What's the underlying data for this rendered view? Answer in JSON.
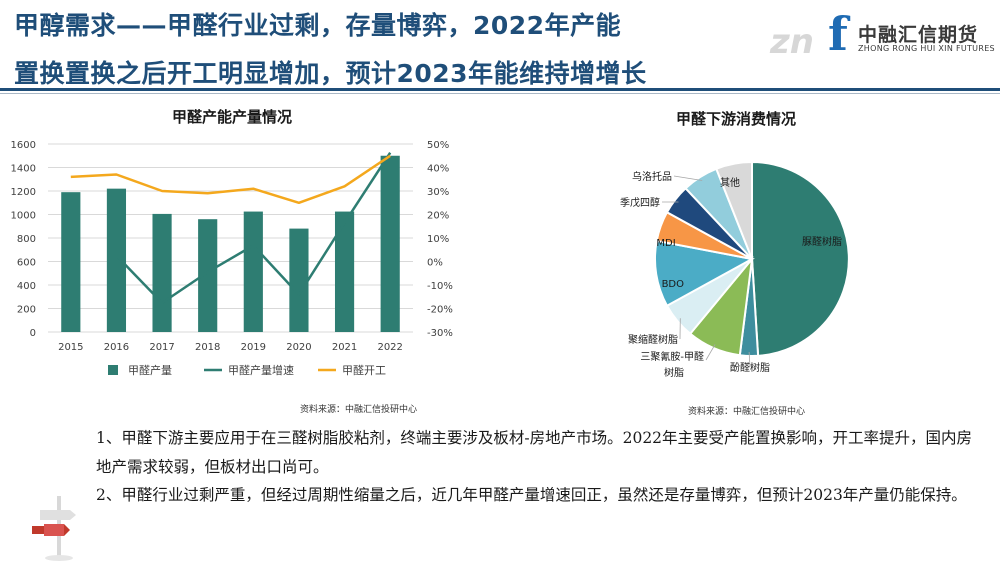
{
  "header": {
    "title_line1": "甲醇需求——甲醛行业过剩，存量博弈，2022年产能",
    "title_line2": "置换置换之后开工明显增加，预计2023年能维持增增长",
    "logo_mark": "f",
    "logo_watermark": "zn",
    "logo_cn": "中融汇信期货",
    "logo_en": "ZHONG RONG HUI XIN FUTURES"
  },
  "chart_data": [
    {
      "type": "bar",
      "title": "甲醛产能产量情况",
      "categories": [
        "2015",
        "2016",
        "2017",
        "2018",
        "2019",
        "2020",
        "2021",
        "2022"
      ],
      "left_axis": {
        "ylim": [
          0,
          1600
        ],
        "ticks": [
          "0",
          "200",
          "400",
          "600",
          "800",
          "1000",
          "1200",
          "1400",
          "1600"
        ]
      },
      "right_axis": {
        "ylim": [
          -30,
          50
        ],
        "ticks": [
          "-30%",
          "-20%",
          "-10%",
          "0%",
          "10%",
          "20%",
          "30%",
          "40%",
          "50%"
        ]
      },
      "series": [
        {
          "name": "甲醛产量",
          "kind": "bar",
          "axis": "left",
          "color": "#2e7d72",
          "values": [
            1190,
            1220,
            1005,
            960,
            1025,
            880,
            1025,
            1500
          ]
        },
        {
          "name": "甲醛产量增速",
          "kind": "line",
          "axis": "right",
          "color": "#2e7d72",
          "values": [
            null,
            2.5,
            -17.6,
            -4.5,
            6.8,
            -14.1,
            16.5,
            46.3
          ]
        },
        {
          "name": "甲醛开工",
          "kind": "line",
          "axis": "right",
          "color": "#f4a81d",
          "values": [
            36,
            37,
            30,
            29,
            31,
            25,
            32,
            45
          ]
        }
      ],
      "grid": true,
      "legend": "bottom",
      "source": "资料来源：中融汇信投研中心"
    },
    {
      "type": "pie",
      "title": "甲醛下游消费情况",
      "slices": [
        {
          "label": "脲醛树脂",
          "value": 49,
          "color": "#2e7d72"
        },
        {
          "label": "酚醛树脂",
          "value": 3,
          "color": "#3e8e9e"
        },
        {
          "label": "三聚氰胺-甲醛树脂",
          "value": 9,
          "color": "#8bbb56"
        },
        {
          "label": "聚缩醛树脂",
          "value": 6,
          "color": "#daeef3"
        },
        {
          "label": "BDO",
          "value": 11,
          "color": "#4bacc6"
        },
        {
          "label": "MDI",
          "value": 5,
          "color": "#f79646"
        },
        {
          "label": "季戊四醇",
          "value": 5,
          "color": "#1f497d"
        },
        {
          "label": "乌洛托品",
          "value": 6,
          "color": "#92cddc"
        },
        {
          "label": "其他",
          "value": 6,
          "color": "#d9d9d9"
        }
      ],
      "source": "资料来源：中融汇信投研中心"
    }
  ],
  "notes": [
    "1、甲醛下游主要应用于在三醛树脂胶粘剂，终端主要涉及板材-房地产市场。2022年主要受产能置换影响，开工率提升，国内房地产需求较弱，但板材出口尚可。",
    "2、甲醛行业过剩严重，但经过周期性缩量之后，近几年甲醛产量增速回正，虽然还是存量博弈，但预计2023年产量仍能保持。"
  ]
}
